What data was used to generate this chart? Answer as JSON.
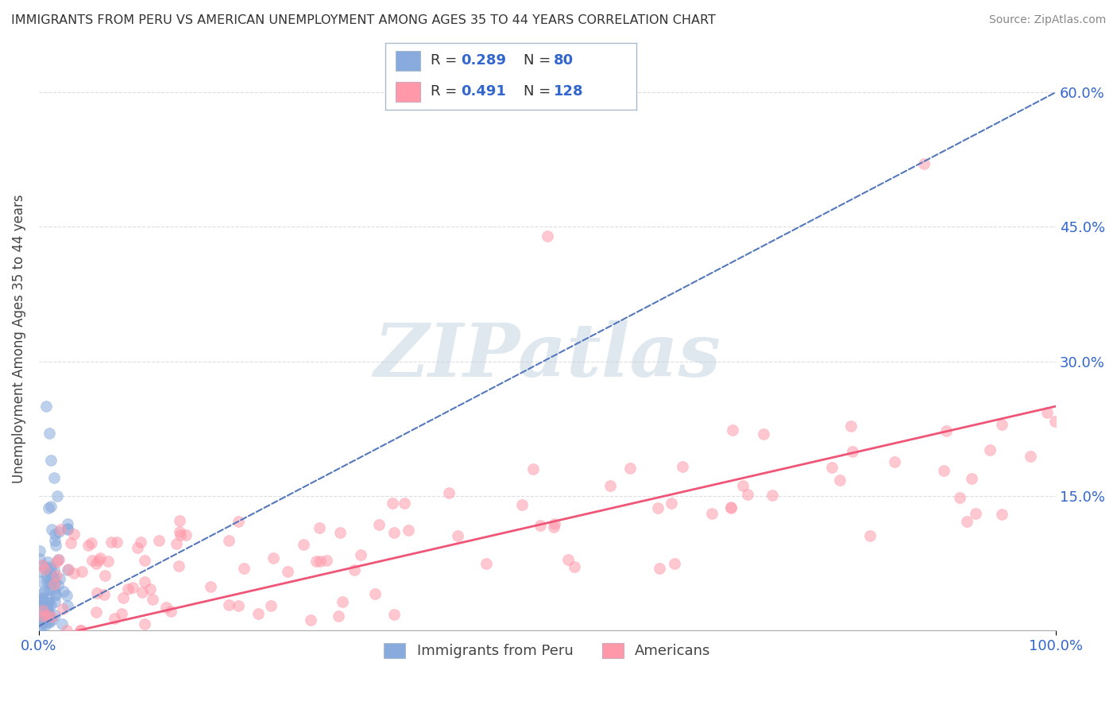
{
  "title": "IMMIGRANTS FROM PERU VS AMERICAN UNEMPLOYMENT AMONG AGES 35 TO 44 YEARS CORRELATION CHART",
  "source": "Source: ZipAtlas.com",
  "ylabel": "Unemployment Among Ages 35 to 44 years",
  "legend_blue_label": "Immigrants from Peru",
  "legend_pink_label": "Americans",
  "ytick_vals": [
    0.0,
    0.15,
    0.3,
    0.45,
    0.6
  ],
  "ytick_labels": [
    "",
    "15.0%",
    "30.0%",
    "45.0%",
    "60.0%"
  ],
  "xlim": [
    0.0,
    1.0
  ],
  "ylim": [
    0.0,
    0.65
  ],
  "blue_color": "#88AADD",
  "pink_color": "#FF99AA",
  "blue_line_color": "#5577BB",
  "pink_line_color": "#EE5577",
  "watermark": "ZIPatlas",
  "background_color": "#ffffff",
  "grid_color": "#DDDDDD",
  "blue_trend_x0": 0.0,
  "blue_trend_y0": 0.005,
  "blue_trend_x1": 1.0,
  "blue_trend_y1": 0.6,
  "pink_trend_x0": 0.0,
  "pink_trend_y0": -0.01,
  "pink_trend_x1": 1.0,
  "pink_trend_y1": 0.25
}
